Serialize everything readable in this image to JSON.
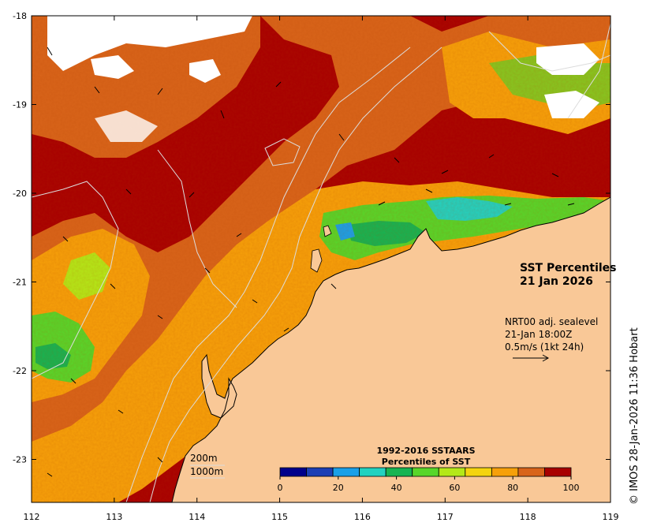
{
  "map": {
    "title_line1": "SST Percentiles",
    "title_line2": "21 Jan 2026",
    "x_ticks": [
      "112",
      "113",
      "114",
      "115",
      "116",
      "117",
      "118",
      "119"
    ],
    "y_ticks": [
      "-18",
      "-19",
      "-20",
      "-21",
      "-22",
      "-23"
    ],
    "current_info": {
      "line1": "NRT00 adj. sealevel",
      "line2": "21-Jan 18:00Z",
      "line3": "0.5m/s (1kt 24h)"
    },
    "contour_labels": {
      "shallow": "200m",
      "deep": "1000m"
    },
    "legend": {
      "title_line1": "1992-2016 SSTAARS",
      "title_line2": "Percentiles of SST",
      "tick_labels": [
        "0",
        "20",
        "40",
        "60",
        "80",
        "100"
      ],
      "colors": [
        "#00008b",
        "#1c3fb5",
        "#1aa0e8",
        "#22d2c0",
        "#16b452",
        "#58d62a",
        "#b4e818",
        "#f4d40e",
        "#f6a00a",
        "#d8641a",
        "#a80000"
      ]
    },
    "credit": "© IMOS 28-Jan-2026 11:36 Hobart",
    "colors": {
      "land": "#f9c897",
      "ocean_background": "#a80000",
      "contour": "#dcdcdc"
    }
  }
}
